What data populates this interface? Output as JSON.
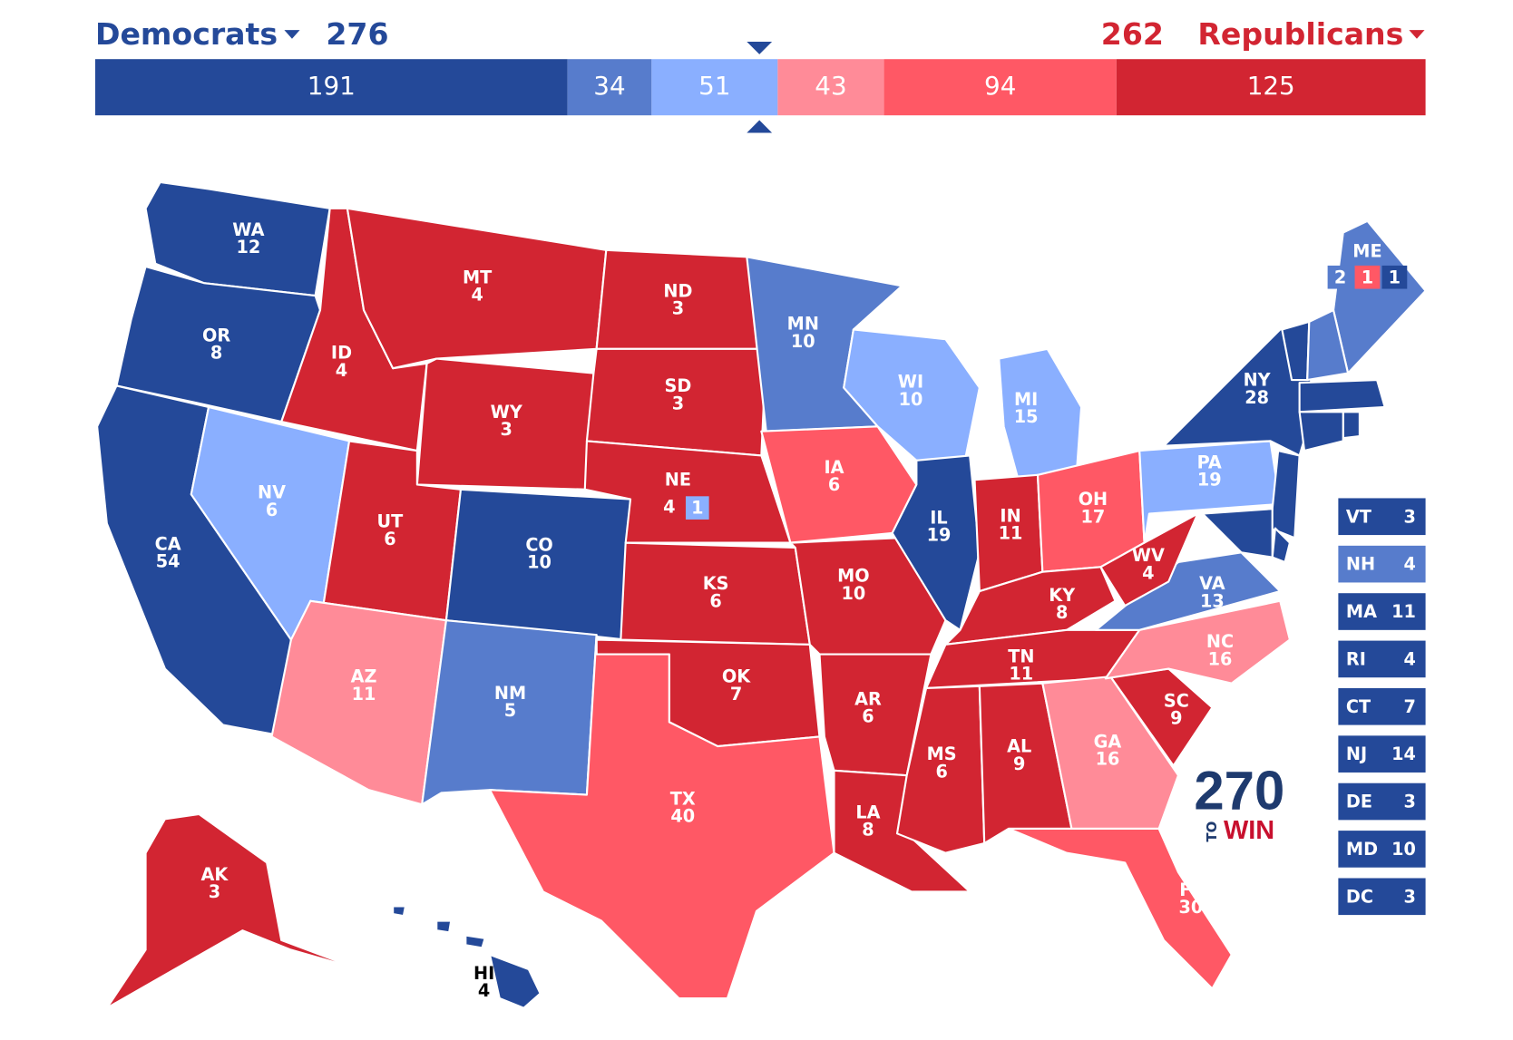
{
  "header": {
    "left_label": "Democrats",
    "left_total": 276,
    "right_total": 262,
    "right_label": "Republicans",
    "left_color": "#244999",
    "right_color": "#d22532"
  },
  "bar": {
    "segments": [
      {
        "value": 191,
        "color": "#244999"
      },
      {
        "value": 34,
        "color": "#577ccc"
      },
      {
        "value": 51,
        "color": "#8aafff"
      },
      {
        "value": 43,
        "color": "#ff8b98"
      },
      {
        "value": 94,
        "color": "#ff5865"
      },
      {
        "value": 125,
        "color": "#d22532"
      }
    ]
  },
  "states": [
    {
      "abbr": "WA",
      "votes": 12,
      "color": "#244999"
    },
    {
      "abbr": "OR",
      "votes": 8,
      "color": "#244999"
    },
    {
      "abbr": "CA",
      "votes": 54,
      "color": "#244999"
    },
    {
      "abbr": "NV",
      "votes": 6,
      "color": "#8aafff"
    },
    {
      "abbr": "ID",
      "votes": 4,
      "color": "#d22532"
    },
    {
      "abbr": "MT",
      "votes": 4,
      "color": "#d22532"
    },
    {
      "abbr": "WY",
      "votes": 3,
      "color": "#d22532"
    },
    {
      "abbr": "UT",
      "votes": 6,
      "color": "#d22532"
    },
    {
      "abbr": "AZ",
      "votes": 11,
      "color": "#ff8b98"
    },
    {
      "abbr": "CO",
      "votes": 10,
      "color": "#244999"
    },
    {
      "abbr": "NM",
      "votes": 5,
      "color": "#577ccc"
    },
    {
      "abbr": "ND",
      "votes": 3,
      "color": "#d22532"
    },
    {
      "abbr": "SD",
      "votes": 3,
      "color": "#d22532"
    },
    {
      "abbr": "NE",
      "votes": 4,
      "color": "#d22532",
      "splits": [
        {
          "value": 1,
          "color": "#8aafff"
        }
      ]
    },
    {
      "abbr": "KS",
      "votes": 6,
      "color": "#d22532"
    },
    {
      "abbr": "OK",
      "votes": 7,
      "color": "#d22532"
    },
    {
      "abbr": "TX",
      "votes": 40,
      "color": "#ff5865"
    },
    {
      "abbr": "MN",
      "votes": 10,
      "color": "#577ccc"
    },
    {
      "abbr": "IA",
      "votes": 6,
      "color": "#ff5865"
    },
    {
      "abbr": "MO",
      "votes": 10,
      "color": "#d22532"
    },
    {
      "abbr": "AR",
      "votes": 6,
      "color": "#d22532"
    },
    {
      "abbr": "LA",
      "votes": 8,
      "color": "#d22532"
    },
    {
      "abbr": "WI",
      "votes": 10,
      "color": "#8aafff"
    },
    {
      "abbr": "IL",
      "votes": 19,
      "color": "#244999"
    },
    {
      "abbr": "MI",
      "votes": 15,
      "color": "#8aafff"
    },
    {
      "abbr": "IN",
      "votes": 11,
      "color": "#d22532"
    },
    {
      "abbr": "OH",
      "votes": 17,
      "color": "#ff5865"
    },
    {
      "abbr": "KY",
      "votes": 8,
      "color": "#d22532"
    },
    {
      "abbr": "TN",
      "votes": 11,
      "color": "#d22532"
    },
    {
      "abbr": "MS",
      "votes": 6,
      "color": "#d22532"
    },
    {
      "abbr": "AL",
      "votes": 9,
      "color": "#d22532"
    },
    {
      "abbr": "GA",
      "votes": 16,
      "color": "#ff8b98"
    },
    {
      "abbr": "FL",
      "votes": 30,
      "color": "#ff5865"
    },
    {
      "abbr": "SC",
      "votes": 9,
      "color": "#d22532"
    },
    {
      "abbr": "NC",
      "votes": 16,
      "color": "#ff8b98"
    },
    {
      "abbr": "VA",
      "votes": 13,
      "color": "#577ccc"
    },
    {
      "abbr": "WV",
      "votes": 4,
      "color": "#d22532"
    },
    {
      "abbr": "PA",
      "votes": 19,
      "color": "#8aafff"
    },
    {
      "abbr": "NY",
      "votes": 28,
      "color": "#244999"
    },
    {
      "abbr": "ME",
      "color": "#577ccc",
      "splits": [
        {
          "value": 2,
          "color": "#577ccc"
        },
        {
          "value": 1,
          "color": "#ff5865"
        },
        {
          "value": 1,
          "color": "#244999"
        }
      ]
    },
    {
      "abbr": "AK",
      "votes": 3,
      "color": "#d22532"
    },
    {
      "abbr": "HI",
      "votes": 4,
      "color": "#244999"
    }
  ],
  "small_states": [
    {
      "abbr": "VT",
      "votes": 3,
      "color": "#244999"
    },
    {
      "abbr": "NH",
      "votes": 4,
      "color": "#577ccc"
    },
    {
      "abbr": "MA",
      "votes": 11,
      "color": "#244999"
    },
    {
      "abbr": "RI",
      "votes": 4,
      "color": "#244999"
    },
    {
      "abbr": "CT",
      "votes": 7,
      "color": "#244999"
    },
    {
      "abbr": "NJ",
      "votes": 14,
      "color": "#244999"
    },
    {
      "abbr": "DE",
      "votes": 3,
      "color": "#244999"
    },
    {
      "abbr": "MD",
      "votes": 10,
      "color": "#244999"
    },
    {
      "abbr": "DC",
      "votes": 3,
      "color": "#244999"
    }
  ],
  "logo": {
    "number": "270",
    "small": "TO",
    "word": "WIN"
  }
}
